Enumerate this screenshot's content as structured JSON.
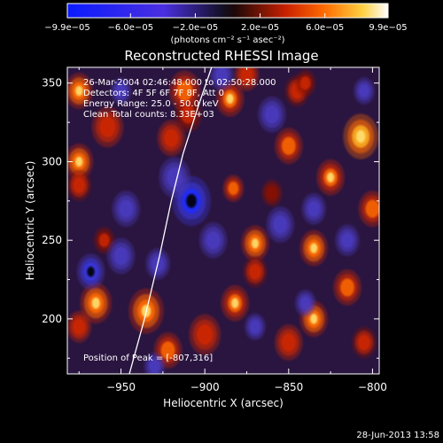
{
  "chart_data": {
    "type": "heatmap",
    "title": "Reconstructed RHESSI Image",
    "xlabel": "Heliocentric X (arcsec)",
    "ylabel": "Heliocentric Y (arcsec)",
    "xlim": [
      -982,
      -796
    ],
    "ylim": [
      165,
      360
    ],
    "xticks": [
      -950,
      -900,
      -850,
      -800
    ],
    "xtick_labels": [
      "−950",
      "−900",
      "−850",
      "−800"
    ],
    "yticks": [
      200,
      250,
      300,
      350
    ],
    "ytick_labels": [
      "200",
      "250",
      "300",
      "350"
    ],
    "colorbar": {
      "min": -9.9e-05,
      "max": 9.9e-05,
      "tick_labels": [
        "−9.9e−05",
        "−6.0e−05",
        "−2.0e−05",
        "2.0e−05",
        "6.0e−05",
        "9.9e−05"
      ],
      "tick_values": [
        -9.9e-05,
        -6e-05,
        -2e-05,
        2e-05,
        6e-05,
        9.9e-05
      ],
      "unit_label": "(photons cm⁻² s⁻¹ asec⁻²)"
    },
    "annotations": [
      "26-Mar-2004 02:46:48.000 to 02:50:28.000",
      "Detectors: 4F 5F 6F 7F 8F, Att 0",
      "Energy Range: 25.0 - 50.0 keV",
      "Clean    Total counts: 8.33E+03"
    ],
    "peak_label": "Position of Peak = [-807,316]",
    "limb_curve": [
      [
        -945,
        165
      ],
      [
        -936,
        200
      ],
      [
        -927,
        240
      ],
      [
        -920,
        275
      ],
      [
        -913,
        305
      ],
      [
        -904,
        335
      ],
      [
        -896,
        360
      ]
    ],
    "blobs": [
      [
        -975,
        345,
        8,
        0.9
      ],
      [
        -975,
        300,
        8,
        0.9
      ],
      [
        -958,
        322,
        9,
        0.7
      ],
      [
        -975,
        285,
        7,
        0.6
      ],
      [
        -965,
        210,
        9,
        0.9
      ],
      [
        -975,
        195,
        7,
        0.7
      ],
      [
        -935,
        205,
        10,
        0.9
      ],
      [
        -922,
        180,
        8,
        0.8
      ],
      [
        -920,
        315,
        8,
        0.7
      ],
      [
        -910,
        330,
        8,
        0.5
      ],
      [
        -912,
        345,
        9,
        0.75
      ],
      [
        -885,
        340,
        8,
        0.85
      ],
      [
        -875,
        355,
        7,
        0.7
      ],
      [
        -883,
        283,
        6,
        0.8
      ],
      [
        -870,
        248,
        8,
        0.9
      ],
      [
        -870,
        230,
        7,
        0.6
      ],
      [
        -882,
        210,
        8,
        0.85
      ],
      [
        -900,
        190,
        9,
        0.7
      ],
      [
        -850,
        310,
        8,
        0.8
      ],
      [
        -845,
        345,
        7,
        0.6
      ],
      [
        -835,
        245,
        8,
        0.9
      ],
      [
        -825,
        290,
        8,
        0.85
      ],
      [
        -807,
        316,
        10,
        1.0
      ],
      [
        -800,
        270,
        8,
        0.8
      ],
      [
        -815,
        220,
        8,
        0.8
      ],
      [
        -805,
        185,
        7,
        0.6
      ],
      [
        -850,
        185,
        8,
        0.7
      ],
      [
        -835,
        200,
        8,
        0.9
      ],
      [
        -960,
        250,
        6,
        0.5
      ],
      [
        -860,
        280,
        6,
        0.45
      ],
      [
        -840,
        350,
        6,
        0.5
      ],
      [
        -908,
        275,
        11,
        -1.0
      ],
      [
        -918,
        290,
        9,
        -0.7
      ],
      [
        -968,
        230,
        8,
        -0.9
      ],
      [
        -950,
        240,
        8,
        -0.6
      ],
      [
        -947,
        270,
        8,
        -0.6
      ],
      [
        -928,
        235,
        7,
        -0.5
      ],
      [
        -895,
        250,
        8,
        -0.55
      ],
      [
        -855,
        260,
        8,
        -0.6
      ],
      [
        -860,
        330,
        8,
        -0.55
      ],
      [
        -835,
        270,
        7,
        -0.5
      ],
      [
        -815,
        250,
        7,
        -0.5
      ],
      [
        -890,
        355,
        7,
        -0.5
      ],
      [
        -840,
        210,
        6,
        -0.45
      ],
      [
        -870,
        195,
        6,
        -0.45
      ],
      [
        -950,
        345,
        6,
        -0.45
      ],
      [
        -930,
        170,
        6,
        -0.45
      ],
      [
        -805,
        345,
        6,
        -0.5
      ]
    ]
  },
  "footer": {
    "timestamp": "28-Jun-2013 13:58"
  }
}
